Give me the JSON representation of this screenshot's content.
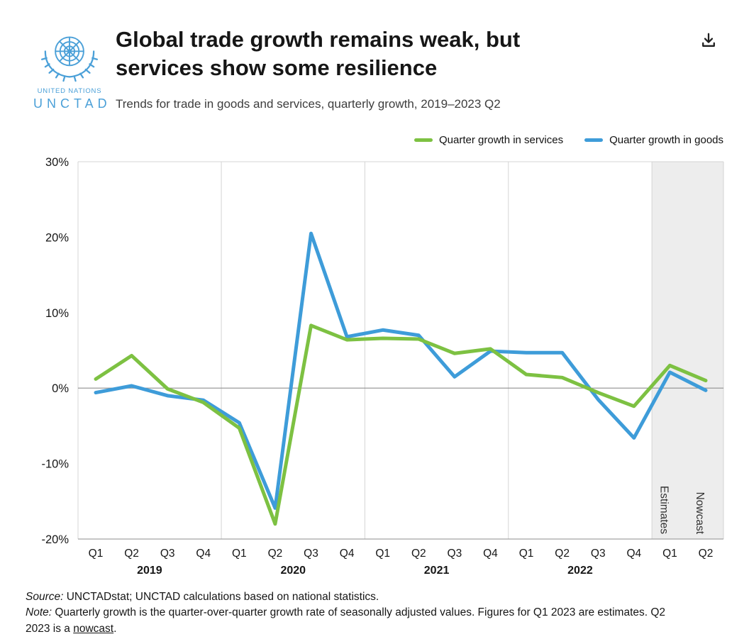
{
  "header": {
    "title": "Global trade growth remains weak, but services show some resilience",
    "subtitle": "Trends for trade in goods and services, quarterly growth, 2019–2023 Q2",
    "logo": {
      "org": "UNITED NATIONS",
      "acronym": "UNCTAD",
      "color": "#4BA0D8"
    },
    "icons": {
      "download": "download-icon"
    }
  },
  "chart_data": {
    "type": "line",
    "title": "Global trade growth remains weak, but services show some resilience",
    "subtitle": "Trends for trade in goods and services, quarterly growth, 2019–2023 Q2",
    "categories": [
      "Q1",
      "Q2",
      "Q3",
      "Q4",
      "Q1",
      "Q2",
      "Q3",
      "Q4",
      "Q1",
      "Q2",
      "Q3",
      "Q4",
      "Q1",
      "Q2",
      "Q3",
      "Q4",
      "Q1",
      "Q2"
    ],
    "year_groups": [
      {
        "label": "2019",
        "start": 0,
        "end": 3
      },
      {
        "label": "2020",
        "start": 4,
        "end": 7
      },
      {
        "label": "2021",
        "start": 8,
        "end": 11
      },
      {
        "label": "2022",
        "start": 12,
        "end": 15
      }
    ],
    "series": [
      {
        "name": "Quarter growth in services",
        "color": "#7DC142",
        "values": [
          1.2,
          4.3,
          -0.1,
          -1.9,
          -5.3,
          -18.0,
          8.3,
          6.4,
          6.6,
          6.5,
          4.6,
          5.2,
          1.8,
          1.4,
          -0.6,
          -2.4,
          3.0,
          1.0
        ]
      },
      {
        "name": "Quarter growth in goods",
        "color": "#3E9CD9",
        "values": [
          -0.6,
          0.3,
          -1.0,
          -1.6,
          -4.6,
          -15.9,
          20.5,
          6.8,
          7.7,
          7.0,
          1.5,
          4.9,
          4.7,
          4.7,
          -1.5,
          -6.6,
          2.1,
          -0.3
        ]
      }
    ],
    "ylim": [
      -20,
      30
    ],
    "yticks": [
      30,
      20,
      10,
      0,
      -10,
      -20
    ],
    "ytick_suffix": "%",
    "highlight_region": {
      "start_index": 16,
      "labels": [
        "Estimates",
        "Nowcast"
      ],
      "color": "#EDEDED"
    },
    "legend_position": "top-right",
    "grid": "vertical-year-separators-and-zero-line"
  },
  "footer": {
    "source_label": "Source:",
    "source_text": " UNCTADstat; UNCTAD calculations based on national statistics.",
    "note_label": "Note:",
    "note_text_before_link": " Quarterly growth is the quarter-over-quarter growth rate of seasonally adjusted values. Figures for Q1 2023 are estimates. Q2 2023 is a ",
    "note_link": "nowcast",
    "note_text_after_link": "."
  }
}
